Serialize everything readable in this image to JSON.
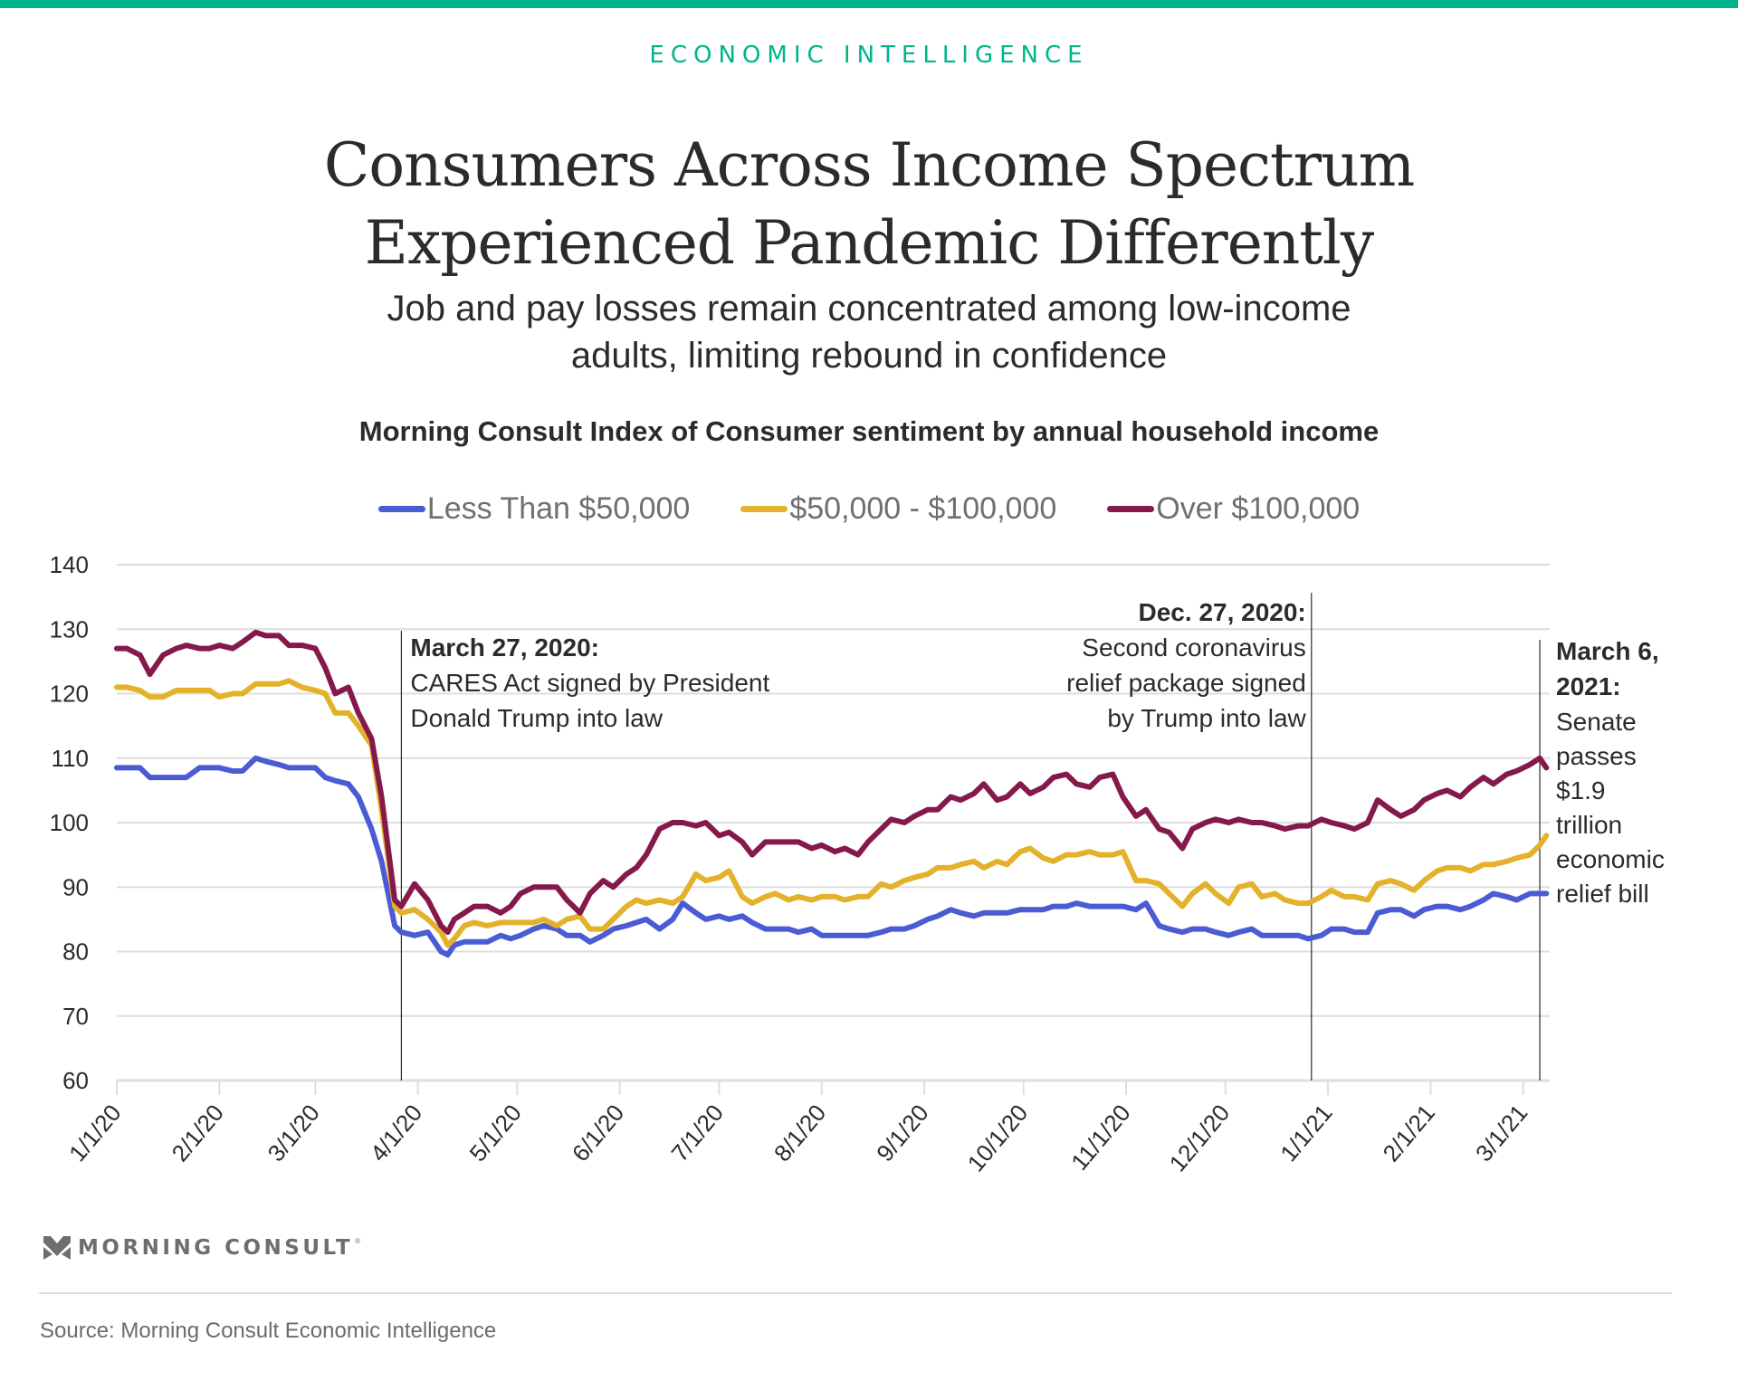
{
  "header": {
    "kicker": "ECONOMIC INTELLIGENCE",
    "title_line1": "Consumers Across Income Spectrum",
    "title_line2": "Experienced Pandemic Differently",
    "subtitle_line1": "Job and pay losses remain concentrated among low-income",
    "subtitle_line2": "adults, limiting rebound in confidence",
    "accent_color": "#00b48a"
  },
  "chart_data": {
    "type": "line",
    "title": "Morning Consult Index of Consumer sentiment by annual household income",
    "xlabel": "",
    "ylabel": "",
    "x_start_date": "2020-01-01",
    "x_unit": "days since 1/1/20",
    "xlim": [
      0,
      433
    ],
    "ylim": [
      60,
      140
    ],
    "yticks": [
      60,
      70,
      80,
      90,
      100,
      110,
      120,
      130,
      140
    ],
    "grid": true,
    "legend_position": "top-center",
    "xticks": [
      {
        "label": "1/1/20",
        "day": 0
      },
      {
        "label": "2/1/20",
        "day": 31
      },
      {
        "label": "3/1/20",
        "day": 60
      },
      {
        "label": "4/1/20",
        "day": 91
      },
      {
        "label": "5/1/20",
        "day": 121
      },
      {
        "label": "6/1/20",
        "day": 152
      },
      {
        "label": "7/1/20",
        "day": 182
      },
      {
        "label": "8/1/20",
        "day": 213
      },
      {
        "label": "9/1/20",
        "day": 244
      },
      {
        "label": "10/1/20",
        "day": 274
      },
      {
        "label": "11/1/20",
        "day": 305
      },
      {
        "label": "12/1/20",
        "day": 335
      },
      {
        "label": "1/1/21",
        "day": 366
      },
      {
        "label": "2/1/21",
        "day": 397
      },
      {
        "label": "3/1/21",
        "day": 425
      }
    ],
    "x": [
      0,
      3,
      7,
      10,
      14,
      18,
      21,
      25,
      28,
      31,
      35,
      38,
      42,
      45,
      49,
      52,
      56,
      60,
      63,
      66,
      70,
      73,
      77,
      80,
      84,
      86,
      90,
      94,
      98,
      100,
      102,
      105,
      108,
      112,
      116,
      119,
      122,
      126,
      129,
      133,
      136,
      140,
      143,
      147,
      150,
      154,
      157,
      160,
      164,
      168,
      171,
      175,
      178,
      182,
      185,
      189,
      192,
      196,
      199,
      203,
      206,
      210,
      213,
      217,
      220,
      224,
      227,
      231,
      234,
      238,
      241,
      245,
      248,
      252,
      255,
      259,
      262,
      266,
      269,
      273,
      276,
      280,
      283,
      287,
      290,
      294,
      297,
      301,
      304,
      308,
      311,
      315,
      318,
      322,
      325,
      329,
      332,
      336,
      339,
      343,
      346,
      350,
      353,
      357,
      360,
      364,
      367,
      371,
      374,
      378,
      381,
      385,
      388,
      392,
      395,
      399,
      402,
      406,
      409,
      413,
      416,
      420,
      423,
      427,
      430,
      432
    ],
    "series": [
      {
        "name": "Less Than $50,000",
        "color": "#4a5bd4",
        "values": [
          108.5,
          108.5,
          108.5,
          107,
          107,
          107,
          107,
          108.5,
          108.5,
          108.5,
          108,
          108,
          110,
          109.5,
          109,
          108.5,
          108.5,
          108.5,
          107,
          106.5,
          106,
          104,
          99,
          94,
          84,
          83,
          82.5,
          83,
          80,
          79.5,
          81,
          81.5,
          81.5,
          81.5,
          82.5,
          82,
          82.5,
          83.5,
          84,
          83.5,
          82.5,
          82.5,
          81.5,
          82.5,
          83.5,
          84,
          84.5,
          85,
          83.5,
          85,
          87.5,
          86,
          85,
          85.5,
          85,
          85.5,
          84.5,
          83.5,
          83.5,
          83.5,
          83,
          83.5,
          82.5,
          82.5,
          82.5,
          82.5,
          82.5,
          83,
          83.5,
          83.5,
          84,
          85,
          85.5,
          86.5,
          86,
          85.5,
          86,
          86,
          86,
          86.5,
          86.5,
          86.5,
          87,
          87,
          87.5,
          87,
          87,
          87,
          87,
          86.5,
          87.5,
          84,
          83.5,
          83,
          83.5,
          83.5,
          83,
          82.5,
          83,
          83.5,
          82.5,
          82.5,
          82.5,
          82.5,
          82,
          82.5,
          83.5,
          83.5,
          83,
          83,
          86,
          86.5,
          86.5,
          85.5,
          86.5,
          87,
          87,
          86.5,
          87,
          88,
          89,
          88.5,
          88,
          89,
          89,
          89
        ]
      },
      {
        "name": "$50,000 - $100,000",
        "color": "#e3b22a",
        "values": [
          121,
          121,
          120.5,
          119.5,
          119.5,
          120.5,
          120.5,
          120.5,
          120.5,
          119.5,
          120,
          120,
          121.5,
          121.5,
          121.5,
          122,
          121,
          120.5,
          120,
          117,
          117,
          115,
          112,
          102,
          87,
          86,
          86.5,
          85,
          83,
          81,
          82,
          84,
          84.5,
          84,
          84.5,
          84.5,
          84.5,
          84.5,
          85,
          84,
          85,
          85.5,
          83.5,
          83.5,
          85,
          87,
          88,
          87.5,
          88,
          87.5,
          88.5,
          92,
          91,
          91.5,
          92.5,
          88.5,
          87.5,
          88.5,
          89,
          88,
          88.5,
          88,
          88.5,
          88.5,
          88,
          88.5,
          88.5,
          90.5,
          90,
          91,
          91.5,
          92,
          93,
          93,
          93.5,
          94,
          93,
          94,
          93.5,
          95.5,
          96,
          94.5,
          94,
          95,
          95,
          95.5,
          95,
          95,
          95.5,
          91,
          91,
          90.5,
          89,
          87,
          89,
          90.5,
          89,
          87.5,
          90,
          90.5,
          88.5,
          89,
          88,
          87.5,
          87.5,
          88.5,
          89.5,
          88.5,
          88.5,
          88,
          90.5,
          91,
          90.5,
          89.5,
          91,
          92.5,
          93,
          93,
          92.5,
          93.5,
          93.5,
          94,
          94.5,
          95,
          96.5,
          98
        ]
      },
      {
        "name": "Over $100,000",
        "color": "#85194b",
        "values": [
          127,
          127,
          126,
          123,
          126,
          127,
          127.5,
          127,
          127,
          127.5,
          127,
          128,
          129.5,
          129,
          129,
          127.5,
          127.5,
          127,
          124,
          120,
          121,
          117,
          113,
          104,
          88,
          87,
          90.5,
          88,
          84,
          83,
          85,
          86,
          87,
          87,
          86,
          87,
          89,
          90,
          90,
          90,
          88,
          86,
          89,
          91,
          90,
          92,
          93,
          95,
          99,
          100,
          100,
          99.5,
          100,
          98,
          98.5,
          97,
          95,
          97,
          97,
          97,
          97,
          96,
          96.5,
          95.5,
          96,
          95,
          97,
          99,
          100.5,
          100,
          101,
          102,
          102,
          104,
          103.5,
          104.5,
          106,
          103.5,
          104,
          106,
          104.5,
          105.5,
          107,
          107.5,
          106,
          105.5,
          107,
          107.5,
          104,
          101,
          102,
          99,
          98.5,
          96,
          99,
          100,
          100.5,
          100,
          100.5,
          100,
          100,
          99.5,
          99,
          99.5,
          99.5,
          100.5,
          100,
          99.5,
          99,
          100,
          103.5,
          102,
          101,
          102,
          103.5,
          104.5,
          105,
          104,
          105.5,
          107,
          106,
          107.5,
          108,
          109,
          110,
          108.5
        ]
      }
    ],
    "annotations": [
      {
        "day": 86,
        "date_label": "March 27, 2020:",
        "lines": [
          "CARES Act signed by President",
          "Donald Trump into law"
        ],
        "align": "left"
      },
      {
        "day": 361,
        "date_label": "Dec. 27, 2020:",
        "lines": [
          "Second coronavirus",
          "relief package signed",
          "by Trump into law"
        ],
        "align": "right"
      },
      {
        "day": 430,
        "date_label_lines": [
          "March 6,",
          "2021:"
        ],
        "lines": [
          "Senate",
          "passes",
          "$1.9",
          "trillion",
          "economic",
          "relief bill"
        ],
        "align": "left"
      }
    ]
  },
  "footer": {
    "logo_text": "MORNING CONSULT",
    "logo_mark": "®",
    "source": "Source: Morning Consult Economic Intelligence"
  }
}
